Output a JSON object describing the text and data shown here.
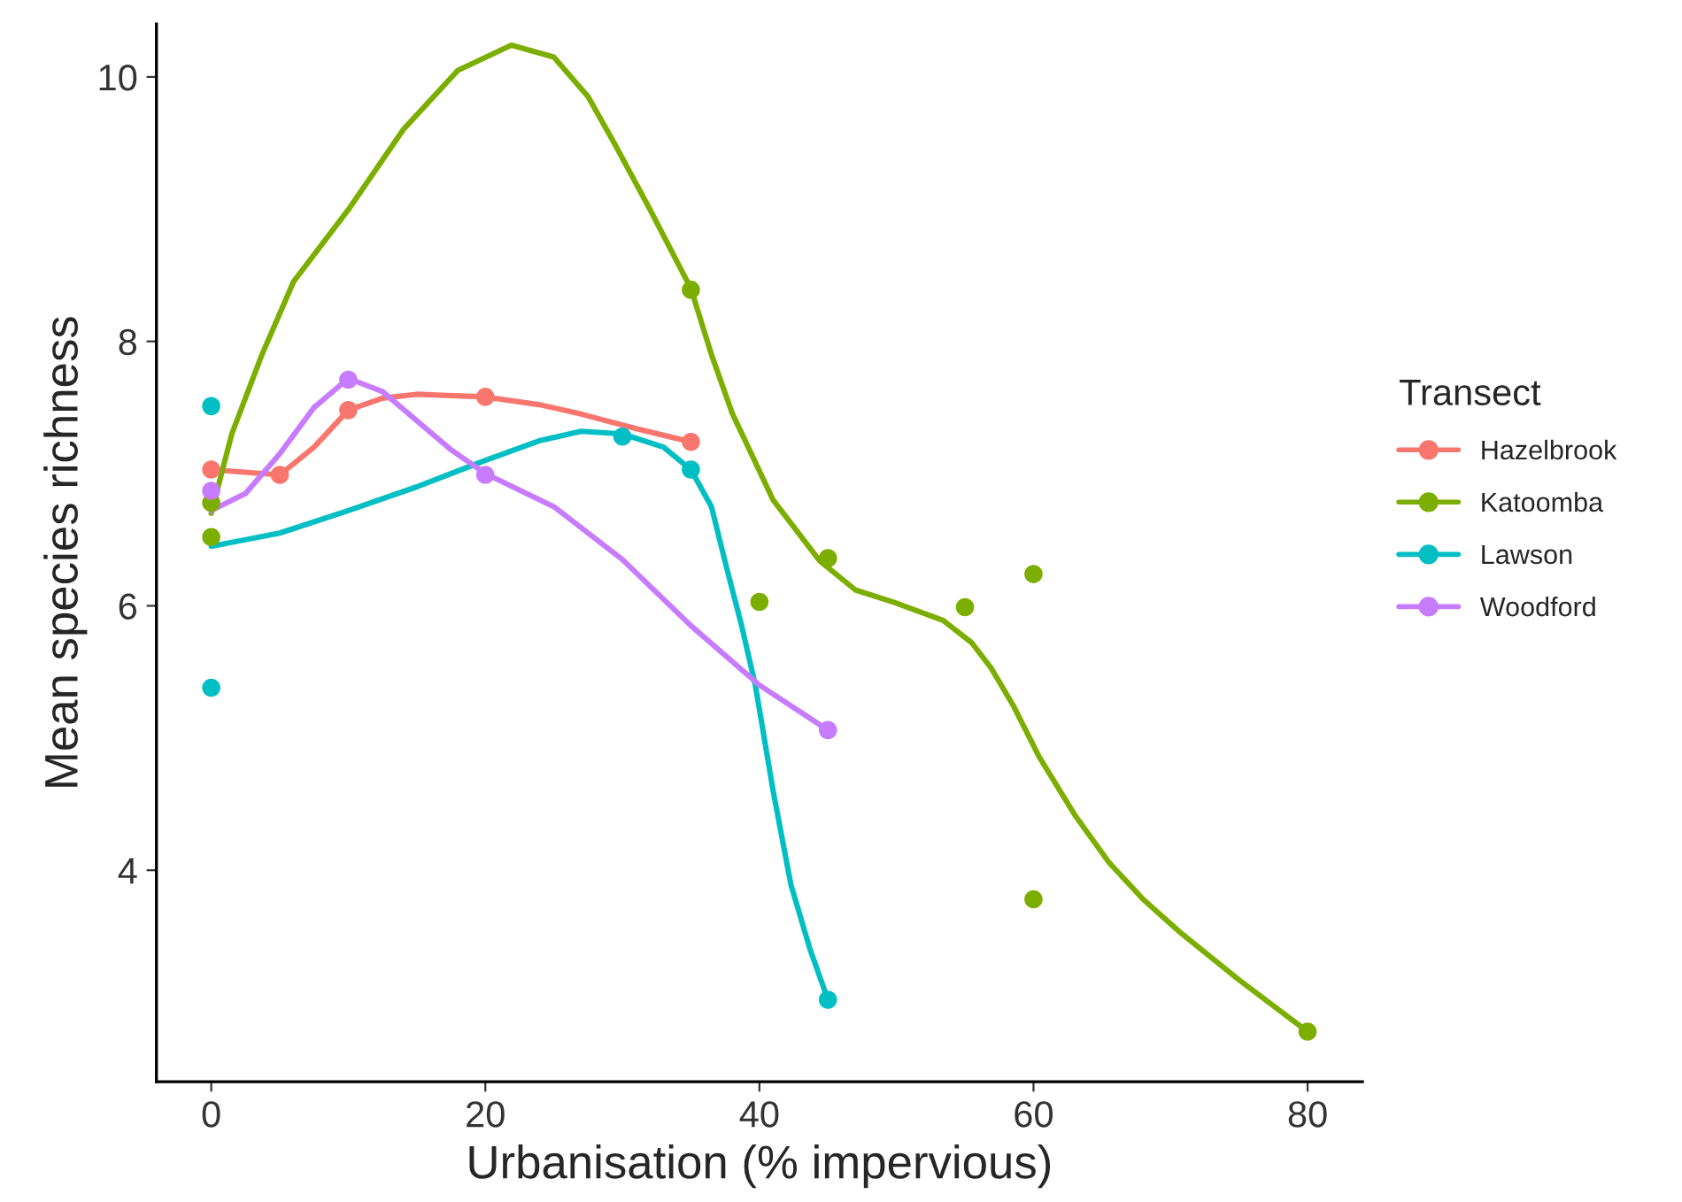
{
  "chart_data": {
    "type": "scatter",
    "xlabel": "Urbanisation (% impervious)",
    "ylabel": "Mean species richness",
    "legend_title": "Transect",
    "legend": "right",
    "grid": false,
    "marker": "circle",
    "xlim": [
      -4,
      84
    ],
    "xticks": [
      0,
      20,
      40,
      60,
      80
    ],
    "ylim": [
      2.4,
      10.4
    ],
    "yticks": [
      4,
      6,
      8,
      10
    ],
    "series": [
      {
        "name": "Hazelbrook",
        "color": "#f8766d",
        "x": [
          0,
          5,
          10,
          20,
          35
        ],
        "values": [
          7.03,
          6.99,
          7.48,
          7.58,
          7.24
        ]
      },
      {
        "name": "Katoomba",
        "color": "#7cae00",
        "x": [
          0,
          0,
          35,
          40,
          45,
          55,
          60,
          60,
          80
        ],
        "values": [
          6.78,
          6.52,
          8.39,
          6.03,
          6.36,
          5.99,
          6.24,
          3.78,
          2.78
        ]
      },
      {
        "name": "Lawson",
        "color": "#00bfc4",
        "x": [
          0,
          0,
          30,
          35,
          45
        ],
        "values": [
          7.51,
          5.38,
          7.28,
          7.03,
          3.02
        ]
      },
      {
        "name": "Woodford",
        "color": "#c77cff",
        "x": [
          0,
          10,
          20,
          45
        ],
        "values": [
          6.87,
          7.71,
          6.99,
          5.06
        ]
      },
      {
        "type": "line",
        "marker": "none",
        "color": "#f8766d",
        "x": [
          0,
          5,
          7.5,
          10,
          12.5,
          15,
          20,
          24,
          27,
          31,
          35
        ],
        "values": [
          7.03,
          6.99,
          7.2,
          7.48,
          7.57,
          7.6,
          7.58,
          7.52,
          7.45,
          7.34,
          7.24
        ]
      },
      {
        "type": "line",
        "marker": "none",
        "color": "#7cae00",
        "x": [
          0,
          1.5,
          3.7,
          6,
          10.1,
          14,
          18,
          21.9,
          25,
          27.5,
          29.4,
          32,
          35,
          36.5,
          38,
          41,
          44.4,
          47,
          50,
          53.4,
          55.5,
          56.9,
          58.5,
          60.4,
          63,
          65.5,
          68,
          70.7,
          75,
          80
        ],
        "values": [
          6.7,
          7.3,
          7.9,
          8.45,
          9.01,
          9.6,
          10.05,
          10.24,
          10.15,
          9.85,
          9.5,
          9.0,
          8.4,
          7.9,
          7.46,
          6.8,
          6.34,
          6.12,
          6.02,
          5.89,
          5.72,
          5.53,
          5.25,
          4.86,
          4.42,
          4.06,
          3.78,
          3.53,
          3.17,
          2.78
        ]
      },
      {
        "type": "line",
        "marker": "none",
        "color": "#00bfc4",
        "x": [
          0,
          5,
          10,
          15,
          20,
          24,
          27,
          30,
          33,
          35,
          36.5,
          37.6,
          38.7,
          39.7,
          41,
          42.3,
          43.7,
          45
        ],
        "values": [
          6.45,
          6.55,
          6.72,
          6.9,
          7.1,
          7.25,
          7.32,
          7.3,
          7.2,
          7.03,
          6.75,
          6.29,
          5.85,
          5.4,
          4.6,
          3.89,
          3.4,
          3.02
        ]
      },
      {
        "type": "line",
        "marker": "none",
        "color": "#c77cff",
        "x": [
          0,
          2.5,
          5,
          7.5,
          10,
          12.5,
          15,
          17.5,
          20,
          25,
          30,
          35,
          40,
          45
        ],
        "values": [
          6.72,
          6.85,
          7.15,
          7.5,
          7.72,
          7.62,
          7.4,
          7.18,
          7.0,
          6.75,
          6.35,
          5.85,
          5.4,
          5.06
        ]
      }
    ]
  }
}
